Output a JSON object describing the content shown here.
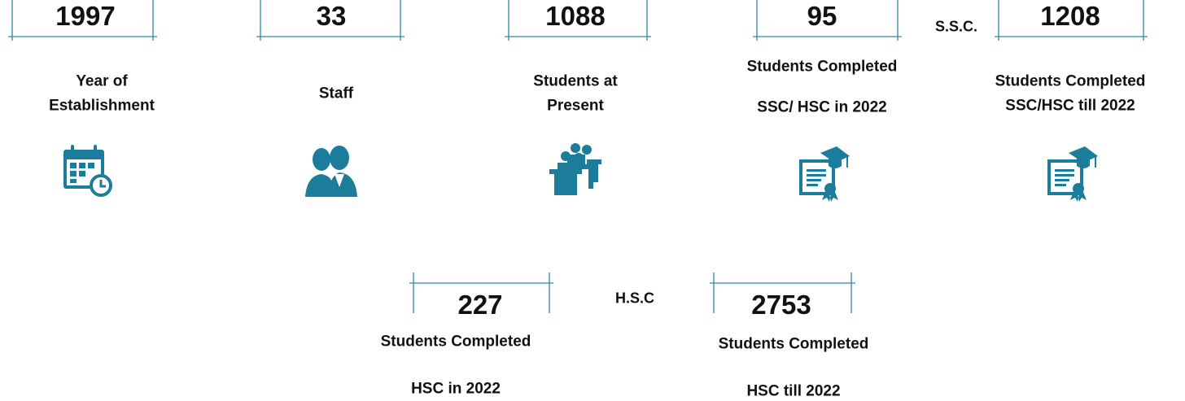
{
  "stats": [
    {
      "number": "1997",
      "label_lines": [
        "Year of",
        "Establishment"
      ]
    },
    {
      "number": "33",
      "label_lines": [
        "Staff"
      ]
    },
    {
      "number": "1088",
      "label_lines": [
        "Students at",
        "Present"
      ]
    },
    {
      "number": "95",
      "label_lines": [
        "Students Completed",
        "SSC/ HSC in 2022"
      ]
    },
    {
      "number": "1208",
      "label_lines": [
        "Students Completed",
        "SSC/HSC till 2022"
      ]
    },
    {
      "number": "227",
      "label_lines": [
        "Students Completed",
        "HSC in 2022"
      ]
    },
    {
      "number": "2753",
      "label_lines": [
        "Students Completed",
        "HSC till 2022"
      ]
    }
  ],
  "separators": [
    "S.S.C.",
    "H.S.C"
  ]
}
